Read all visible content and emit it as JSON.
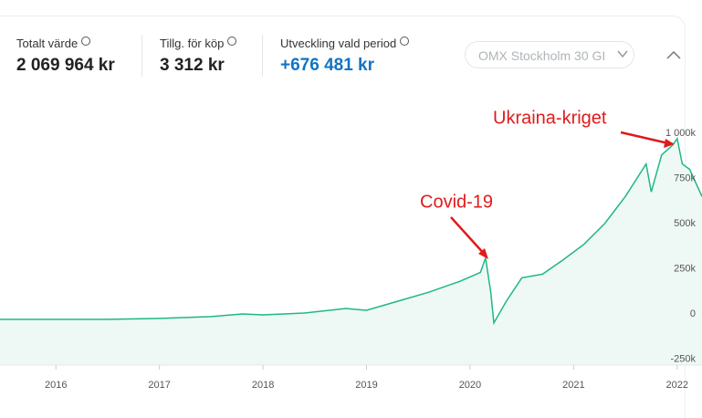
{
  "header": {
    "stats": [
      {
        "label": "Totalt värde",
        "value": "2 069 964 kr"
      },
      {
        "label": "Tillg. för köp",
        "value": "3 312 kr"
      },
      {
        "label": "Utveckling vald period",
        "value": "+676 481 kr"
      }
    ],
    "benchmark": "OMX Stockholm 30 GI"
  },
  "chart_data": {
    "type": "area",
    "x": [
      2015.46,
      2016,
      2016.5,
      2017,
      2017.5,
      2017.8,
      2018,
      2018.4,
      2018.8,
      2019,
      2019.3,
      2019.6,
      2019.9,
      2020.1,
      2020.15,
      2020.2,
      2020.23,
      2020.35,
      2020.5,
      2020.7,
      2020.9,
      2021.1,
      2021.3,
      2021.5,
      2021.7,
      2021.75,
      2021.85,
      2021.95,
      2022.0,
      2022.05,
      2022.12,
      2022.24
    ],
    "values": [
      -30000,
      -30000,
      -30000,
      -25000,
      -15000,
      0,
      -5000,
      5000,
      30000,
      20000,
      70000,
      120000,
      180000,
      230000,
      310000,
      120000,
      -50000,
      70000,
      200000,
      220000,
      300000,
      385000,
      500000,
      650000,
      830000,
      675000,
      880000,
      930000,
      970000,
      830000,
      800000,
      650000
    ],
    "color": "#1fb787",
    "fill_color": "#eef9f5",
    "xlim": [
      2015.46,
      2022.24
    ],
    "xticks": [
      2016,
      2017,
      2018,
      2019,
      2020,
      2021,
      2022
    ],
    "ylim": [
      -283000,
      1232000
    ],
    "yticks": [
      {
        "value": -250000,
        "label": "-250k"
      },
      0,
      {
        "value": 250000,
        "label": "250k"
      },
      {
        "value": 500000,
        "label": "500k"
      },
      {
        "value": 750000,
        "label": "750k"
      },
      {
        "value": 1000000,
        "label": "1 000k"
      }
    ],
    "grid": false,
    "annotations": [
      "Covid-19",
      "Ukraina-kriget"
    ],
    "annotation_color": "#e01b1b"
  }
}
